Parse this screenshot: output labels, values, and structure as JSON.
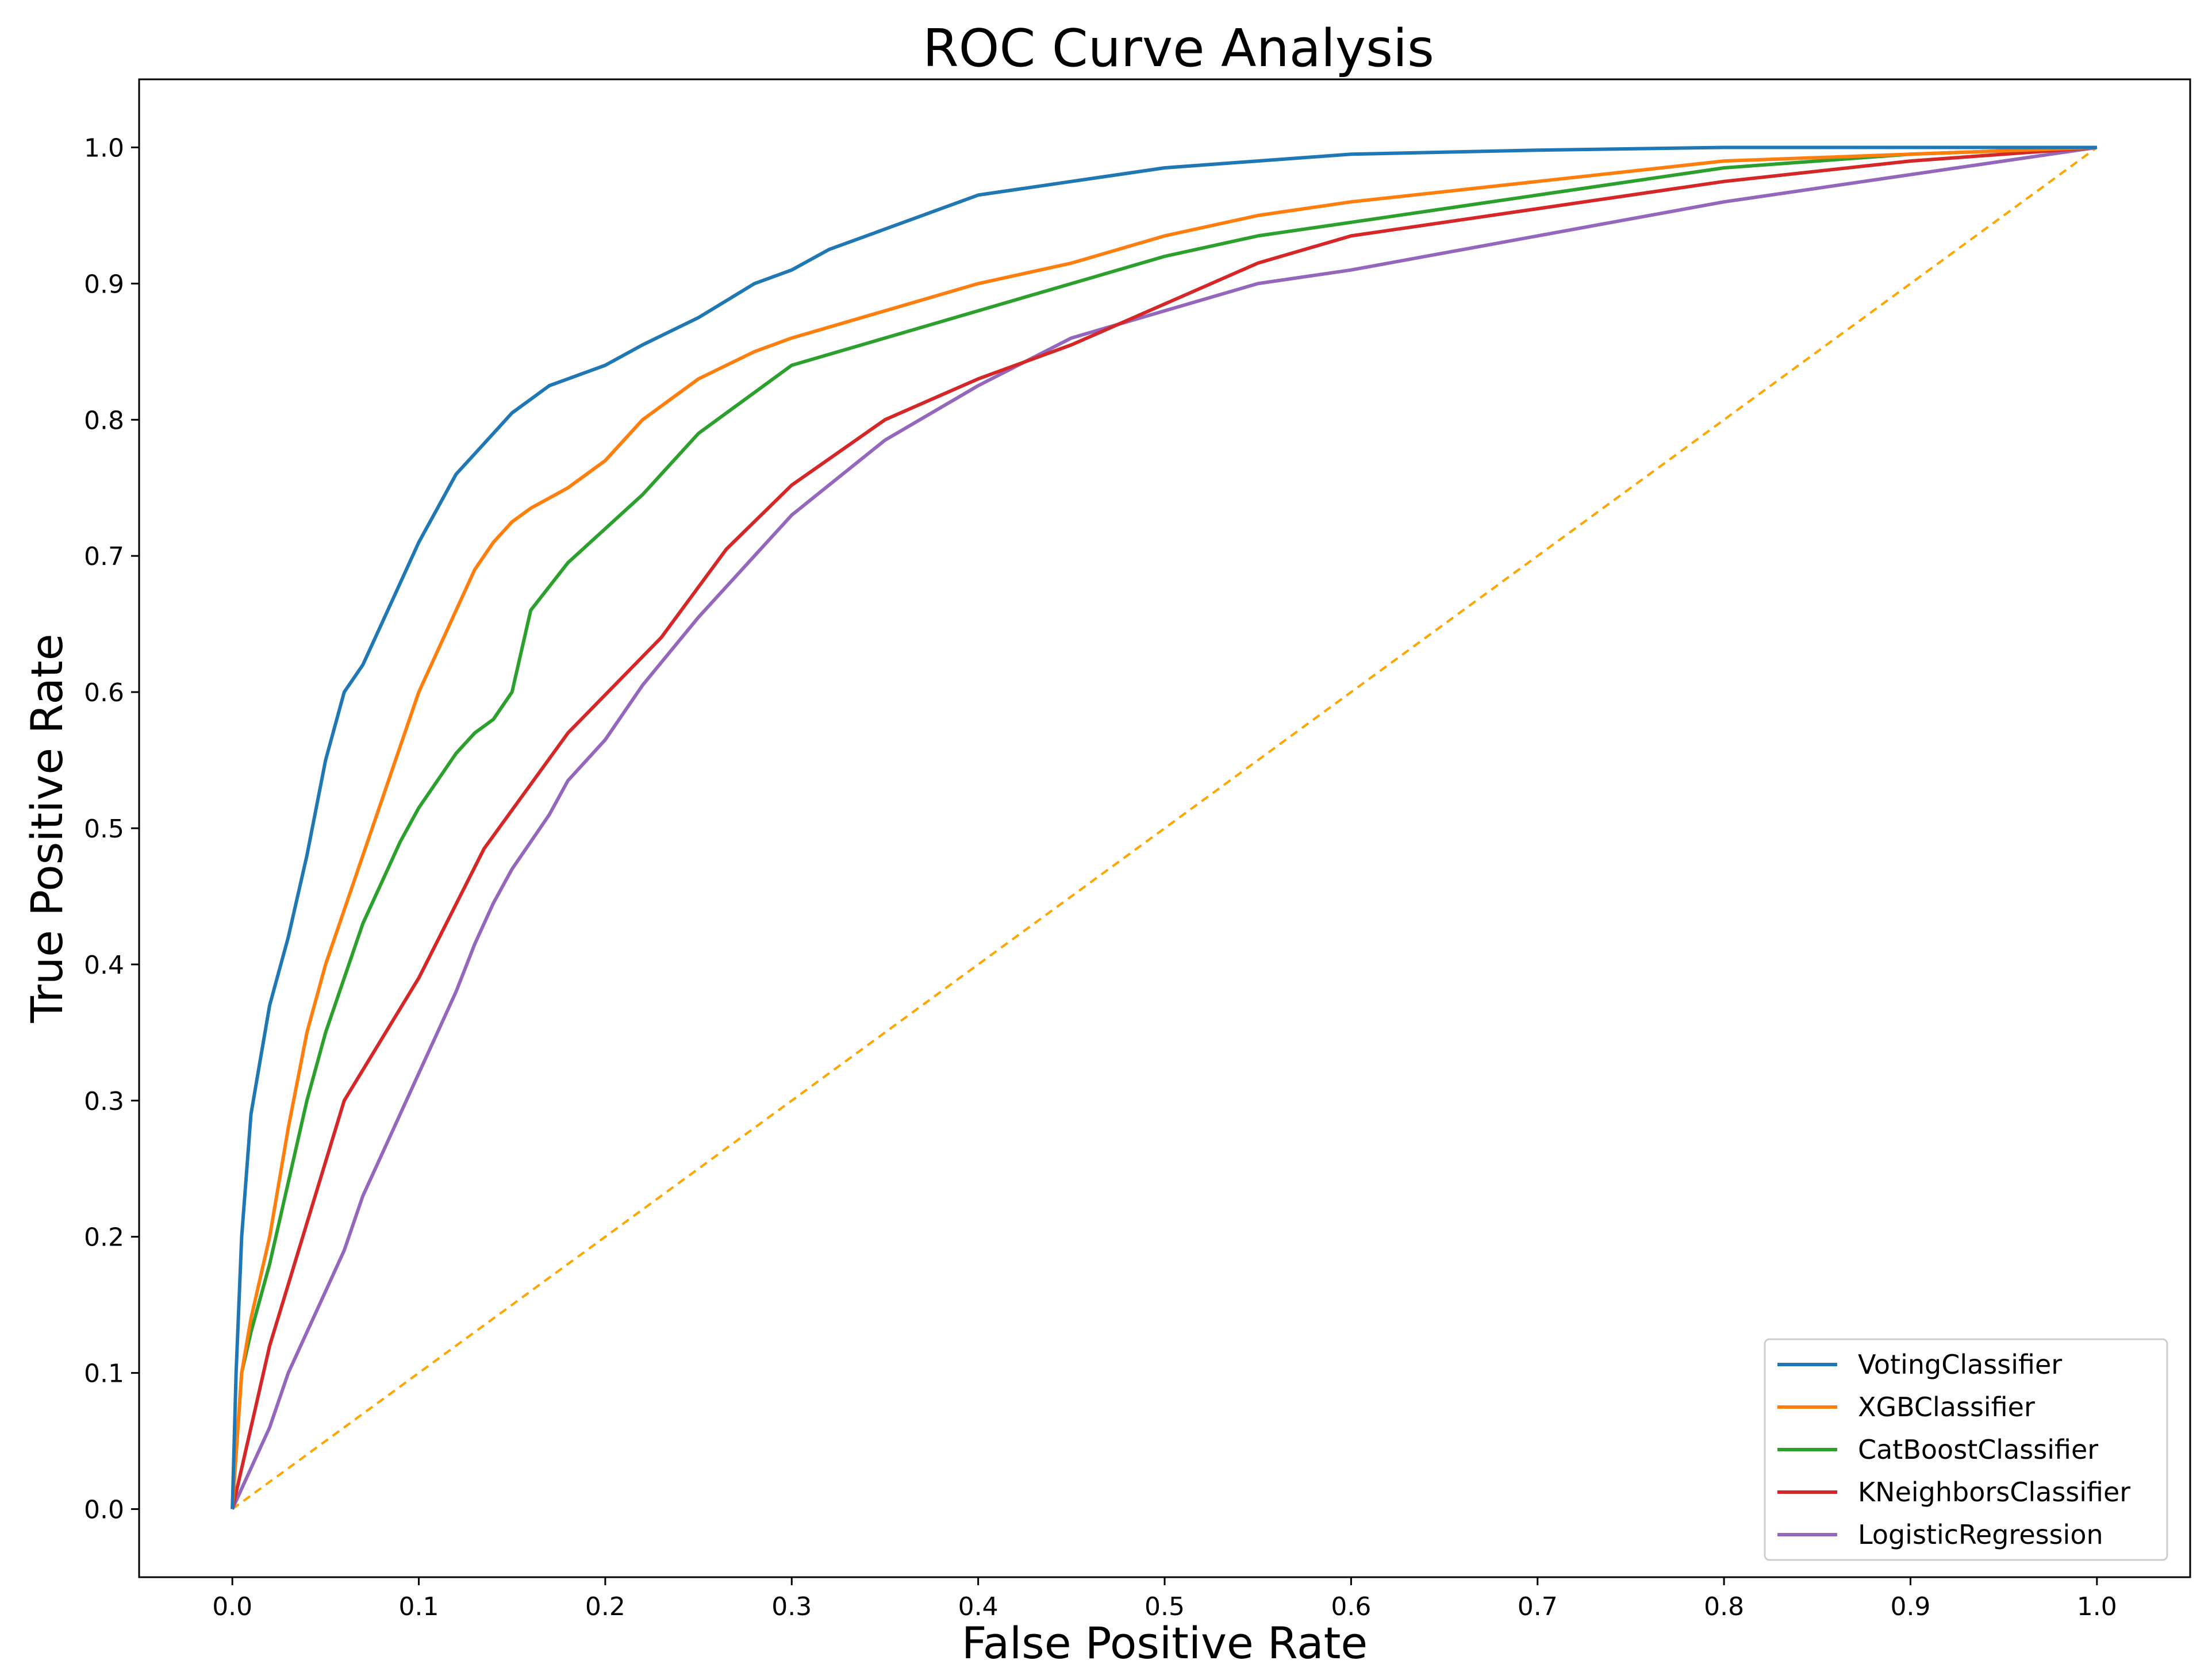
{
  "chart_data": {
    "type": "line",
    "title": "ROC Curve Analysis",
    "xlabel": "False Positive Rate",
    "ylabel": "True Positive Rate",
    "xlim": [
      -0.05,
      1.05
    ],
    "ylim": [
      -0.05,
      1.05
    ],
    "xticks": [
      "0.0",
      "0.1",
      "0.2",
      "0.3",
      "0.4",
      "0.5",
      "0.6",
      "0.7",
      "0.8",
      "0.9",
      "1.0"
    ],
    "yticks": [
      "0.0",
      "0.1",
      "0.2",
      "0.3",
      "0.4",
      "0.5",
      "0.6",
      "0.7",
      "0.8",
      "0.9",
      "1.0"
    ],
    "grid": false,
    "legend_position": "lower-right",
    "series": [
      {
        "name": "VotingClassifier",
        "color": "#1f77b4",
        "style": "solid",
        "x": [
          0,
          0.002,
          0.005,
          0.01,
          0.015,
          0.02,
          0.03,
          0.04,
          0.05,
          0.06,
          0.065,
          0.07,
          0.08,
          0.09,
          0.1,
          0.11,
          0.12,
          0.13,
          0.14,
          0.15,
          0.16,
          0.17,
          0.18,
          0.2,
          0.22,
          0.25,
          0.28,
          0.3,
          0.32,
          0.35,
          0.38,
          0.4,
          0.45,
          0.5,
          0.55,
          0.6,
          0.7,
          0.8,
          0.9,
          1.0
        ],
        "y": [
          0,
          0.1,
          0.2,
          0.29,
          0.33,
          0.37,
          0.42,
          0.48,
          0.55,
          0.6,
          0.61,
          0.62,
          0.65,
          0.68,
          0.71,
          0.735,
          0.76,
          0.775,
          0.79,
          0.805,
          0.815,
          0.825,
          0.83,
          0.84,
          0.855,
          0.875,
          0.9,
          0.91,
          0.925,
          0.94,
          0.955,
          0.965,
          0.975,
          0.985,
          0.99,
          0.995,
          0.998,
          1.0,
          1.0,
          1.0
        ]
      },
      {
        "name": "XGBClassifier",
        "color": "#ff7f0e",
        "style": "solid",
        "x": [
          0,
          0.005,
          0.01,
          0.02,
          0.03,
          0.04,
          0.05,
          0.06,
          0.07,
          0.08,
          0.09,
          0.1,
          0.11,
          0.12,
          0.13,
          0.14,
          0.15,
          0.16,
          0.18,
          0.2,
          0.22,
          0.25,
          0.28,
          0.3,
          0.35,
          0.4,
          0.45,
          0.5,
          0.55,
          0.6,
          0.7,
          0.8,
          0.9,
          1.0
        ],
        "y": [
          0,
          0.1,
          0.14,
          0.2,
          0.28,
          0.35,
          0.4,
          0.44,
          0.48,
          0.52,
          0.56,
          0.6,
          0.63,
          0.66,
          0.69,
          0.71,
          0.725,
          0.735,
          0.75,
          0.77,
          0.8,
          0.83,
          0.85,
          0.86,
          0.88,
          0.9,
          0.915,
          0.935,
          0.95,
          0.96,
          0.975,
          0.99,
          0.995,
          1.0
        ]
      },
      {
        "name": "CatBoostClassifier",
        "color": "#2ca02c",
        "style": "solid",
        "x": [
          0,
          0.005,
          0.01,
          0.02,
          0.03,
          0.04,
          0.05,
          0.06,
          0.07,
          0.08,
          0.09,
          0.1,
          0.11,
          0.12,
          0.13,
          0.14,
          0.15,
          0.16,
          0.18,
          0.2,
          0.22,
          0.25,
          0.28,
          0.3,
          0.35,
          0.4,
          0.45,
          0.5,
          0.55,
          0.6,
          0.7,
          0.8,
          0.9,
          1.0
        ],
        "y": [
          0,
          0.1,
          0.13,
          0.18,
          0.24,
          0.3,
          0.35,
          0.39,
          0.43,
          0.46,
          0.49,
          0.515,
          0.535,
          0.555,
          0.57,
          0.58,
          0.6,
          0.66,
          0.695,
          0.72,
          0.745,
          0.79,
          0.82,
          0.84,
          0.86,
          0.88,
          0.9,
          0.92,
          0.935,
          0.945,
          0.965,
          0.985,
          0.995,
          1.0
        ]
      },
      {
        "name": "KNeighborsClassifier",
        "color": "#d62728",
        "style": "solid",
        "x": [
          0,
          0.02,
          0.04,
          0.06,
          0.1,
          0.135,
          0.18,
          0.23,
          0.265,
          0.3,
          0.35,
          0.4,
          0.45,
          0.5,
          0.55,
          0.6,
          0.7,
          0.8,
          0.9,
          1.0
        ],
        "y": [
          0,
          0.12,
          0.21,
          0.3,
          0.39,
          0.485,
          0.57,
          0.64,
          0.705,
          0.752,
          0.8,
          0.83,
          0.855,
          0.885,
          0.915,
          0.935,
          0.955,
          0.975,
          0.99,
          1.0
        ]
      },
      {
        "name": "LogisticRegression",
        "color": "#9467bd",
        "style": "solid",
        "x": [
          0,
          0.01,
          0.02,
          0.03,
          0.04,
          0.05,
          0.06,
          0.07,
          0.08,
          0.09,
          0.1,
          0.11,
          0.12,
          0.13,
          0.14,
          0.15,
          0.16,
          0.17,
          0.18,
          0.2,
          0.22,
          0.25,
          0.28,
          0.3,
          0.35,
          0.4,
          0.45,
          0.5,
          0.55,
          0.6,
          0.7,
          0.8,
          0.9,
          1.0
        ],
        "y": [
          0,
          0.03,
          0.06,
          0.1,
          0.13,
          0.16,
          0.19,
          0.23,
          0.26,
          0.29,
          0.32,
          0.35,
          0.38,
          0.415,
          0.445,
          0.47,
          0.49,
          0.51,
          0.535,
          0.565,
          0.605,
          0.655,
          0.7,
          0.73,
          0.785,
          0.825,
          0.86,
          0.88,
          0.9,
          0.91,
          0.935,
          0.96,
          0.98,
          1.0
        ]
      },
      {
        "name": "reference",
        "color": "#ffa500",
        "style": "dashed",
        "legend": false,
        "x": [
          0,
          1
        ],
        "y": [
          0,
          1
        ]
      }
    ]
  }
}
